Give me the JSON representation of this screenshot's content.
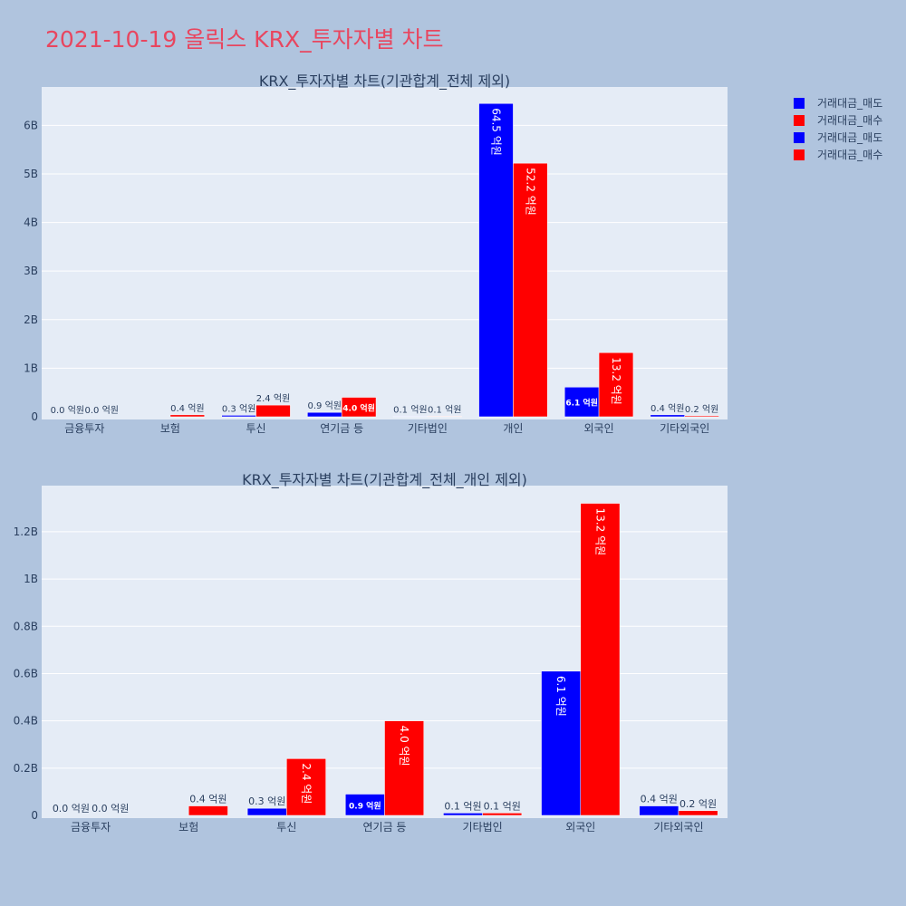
{
  "page_title": "2021-10-19 올릭스 KRX_투자자별 차트",
  "colors": {
    "sell": "#0000ff",
    "buy": "#ff0000",
    "plot_bg": "#e5ecf6",
    "page_bg": "#b0c4de"
  },
  "legend": [
    "거래대금_매도",
    "거래대금_매수",
    "거래대금_매도",
    "거래대금_매수"
  ],
  "chart_data": [
    {
      "type": "bar",
      "title": "KRX_투자자별 차트(기관합계_전체 제외)",
      "categories": [
        "금융투자",
        "보험",
        "투신",
        "연기금 등",
        "기타법인",
        "개인",
        "외국인",
        "기타외국인"
      ],
      "series": [
        {
          "name": "거래대금_매도",
          "values": [
            0,
            0,
            30000000,
            90000000,
            10000000,
            6450000000,
            610000000,
            40000000
          ],
          "labels": [
            "0.0 억원",
            "",
            "0.3 억원",
            "0.9 억원",
            "0.1 억원",
            "64.5 억원",
            "6.1 억원",
            "0.4 억원"
          ]
        },
        {
          "name": "거래대금_매수",
          "values": [
            0,
            40000000,
            240000000,
            400000000,
            10000000,
            5220000000,
            1320000000,
            20000000
          ],
          "labels": [
            "0.0 억원",
            "0.4 억원",
            "2.4 억원",
            "4.0 억원",
            "0.1 억원",
            "52.2 억원",
            "13.2 억원",
            "0.2 억원"
          ]
        }
      ],
      "yticks": [
        0,
        1000000000,
        2000000000,
        3000000000,
        4000000000,
        5000000000,
        6000000000
      ],
      "ytick_labels": [
        "0",
        "1B",
        "2B",
        "3B",
        "4B",
        "5B",
        "6B"
      ],
      "ylim": [
        0,
        6790000000
      ],
      "grid": true
    },
    {
      "type": "bar",
      "title": "KRX_투자자별 차트(기관합계_전체_개인 제외)",
      "categories": [
        "금융투자",
        "보험",
        "투신",
        "연기금 등",
        "기타법인",
        "외국인",
        "기타외국인"
      ],
      "series": [
        {
          "name": "거래대금_매도",
          "values": [
            0,
            0,
            30000000,
            90000000,
            10000000,
            610000000,
            40000000
          ],
          "labels": [
            "0.0 억원",
            "",
            "0.3 억원",
            "0.9 억원",
            "0.1 억원",
            "6.1 억원",
            "0.4 억원"
          ]
        },
        {
          "name": "거래대금_매수",
          "values": [
            0,
            40000000,
            240000000,
            400000000,
            10000000,
            1320000000,
            20000000
          ],
          "labels": [
            "0.0 억원",
            "0.4 억원",
            "2.4 억원",
            "4.0 억원",
            "0.1 억원",
            "13.2 억원",
            "0.2 억원"
          ]
        }
      ],
      "yticks": [
        0,
        200000000,
        400000000,
        600000000,
        800000000,
        1000000000,
        1200000000
      ],
      "ytick_labels": [
        "0",
        "0.2B",
        "0.4B",
        "0.6B",
        "0.8B",
        "1B",
        "1.2B"
      ],
      "ylim": [
        0,
        1395000000
      ],
      "grid": true
    }
  ]
}
